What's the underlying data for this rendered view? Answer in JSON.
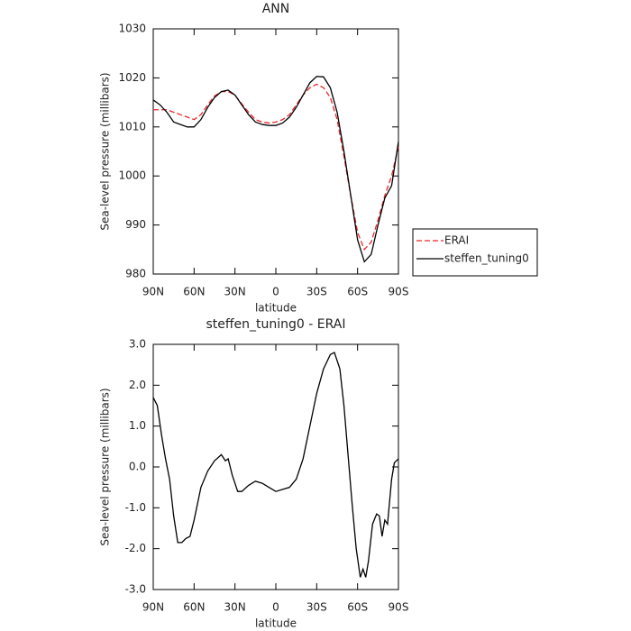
{
  "chart_data": [
    {
      "type": "line",
      "title": "ANN",
      "xlabel": "latitude",
      "ylabel": "Sea-level pressure (millibars)",
      "xlim": [
        90,
        -90
      ],
      "xticks": [
        {
          "value": 90,
          "label": "90N"
        },
        {
          "value": 60,
          "label": "60N"
        },
        {
          "value": 30,
          "label": "30N"
        },
        0,
        {
          "value": -30,
          "label": "30S"
        },
        {
          "value": -60,
          "label": "60S"
        },
        {
          "value": -90,
          "label": "90S"
        }
      ],
      "ylim": [
        980,
        1030
      ],
      "yticks": [
        980,
        990,
        1000,
        1010,
        1020,
        1030
      ],
      "legend": "right",
      "x": [
        90,
        85,
        80,
        75,
        70,
        65,
        60,
        55,
        50,
        45,
        40,
        35,
        30,
        25,
        20,
        15,
        10,
        5,
        0,
        -5,
        -10,
        -15,
        -20,
        -25,
        -30,
        -35,
        -40,
        -45,
        -50,
        -55,
        -60,
        -65,
        -70,
        -75,
        -80,
        -85,
        -90
      ],
      "series": [
        {
          "name": "ERAI",
          "color": "#e8262b",
          "style": "dashed",
          "values": [
            1013.5,
            1013.5,
            1013.5,
            1013,
            1012.5,
            1012,
            1011.5,
            1012.5,
            1014.5,
            1016.3,
            1017.2,
            1017.2,
            1016.5,
            1014.7,
            1013,
            1011.5,
            1011,
            1010.8,
            1011,
            1011.5,
            1012.5,
            1014.5,
            1016.5,
            1018,
            1018.7,
            1018,
            1016,
            1011.5,
            1004,
            996,
            988.5,
            985,
            986.5,
            991,
            996,
            1000,
            1006
          ]
        },
        {
          "name": "steffen_tuning0",
          "color": "#000000",
          "style": "solid",
          "values": [
            1015.5,
            1014.5,
            1013,
            1011,
            1010.5,
            1010,
            1010,
            1011.5,
            1014,
            1016,
            1017.2,
            1017.5,
            1016.5,
            1014.5,
            1012.5,
            1011,
            1010.5,
            1010.3,
            1010.3,
            1010.8,
            1012,
            1014,
            1016.5,
            1019,
            1020.3,
            1020.2,
            1018,
            1013,
            1005,
            996,
            987,
            982.5,
            984,
            990,
            995.5,
            998,
            1007
          ]
        }
      ]
    },
    {
      "type": "line",
      "title": "steffen_tuning0 - ERAI",
      "xlabel": "latitude",
      "ylabel": "Sea-level pressure (millibars)",
      "xlim": [
        90,
        -90
      ],
      "xticks": [
        {
          "value": 90,
          "label": "90N"
        },
        {
          "value": 60,
          "label": "60N"
        },
        {
          "value": 30,
          "label": "30N"
        },
        0,
        {
          "value": -30,
          "label": "30S"
        },
        {
          "value": -60,
          "label": "60S"
        },
        {
          "value": -90,
          "label": "90S"
        }
      ],
      "ylim": [
        -3,
        3
      ],
      "yticks": [
        {
          "value": -3,
          "label": "-3.0"
        },
        {
          "value": -2,
          "label": "-2.0"
        },
        {
          "value": -1,
          "label": "-1.0"
        },
        {
          "value": 0,
          "label": "0.0"
        },
        {
          "value": 1,
          "label": "1.0"
        },
        {
          "value": 2,
          "label": "2.0"
        },
        {
          "value": 3,
          "label": "3.0"
        }
      ],
      "x": [
        90,
        87,
        84,
        81,
        78,
        75,
        72,
        69,
        66,
        63,
        60,
        55,
        50,
        45,
        40,
        37,
        35,
        32,
        28,
        25,
        20,
        15,
        10,
        5,
        0,
        -5,
        -10,
        -15,
        -20,
        -25,
        -30,
        -35,
        -40,
        -43,
        -47,
        -50,
        -53,
        -56,
        -59,
        -62,
        -64,
        -66,
        -68,
        -71,
        -74,
        -76,
        -78,
        -80,
        -82,
        -85,
        -87,
        -90
      ],
      "series": [
        {
          "name": "steffen_tuning0 - ERAI",
          "color": "#000000",
          "style": "solid",
          "values": [
            1.7,
            1.5,
            0.8,
            0.2,
            -0.3,
            -1.2,
            -1.85,
            -1.85,
            -1.75,
            -1.7,
            -1.3,
            -0.5,
            -0.1,
            0.15,
            0.3,
            0.15,
            0.2,
            -0.2,
            -0.6,
            -0.6,
            -0.45,
            -0.35,
            -0.4,
            -0.5,
            -0.6,
            -0.55,
            -0.5,
            -0.3,
            0.2,
            1.0,
            1.8,
            2.4,
            2.75,
            2.8,
            2.4,
            1.5,
            0.3,
            -0.9,
            -2.0,
            -2.7,
            -2.5,
            -2.7,
            -2.3,
            -1.4,
            -1.15,
            -1.2,
            -1.7,
            -1.3,
            -1.4,
            -0.3,
            0.1,
            0.2
          ]
        }
      ]
    }
  ]
}
